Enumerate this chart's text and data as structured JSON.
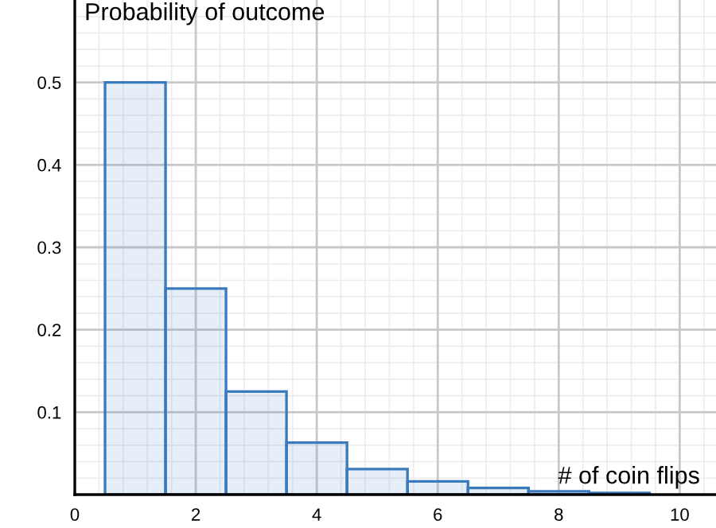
{
  "chart_data": {
    "type": "histogram",
    "xlabel": "# of coin flips",
    "ylabel": "Probability of outcome",
    "bins": [
      0.5,
      1.5,
      2.5,
      3.5,
      4.5,
      5.5,
      6.5,
      7.5,
      8.5,
      9.5
    ],
    "values": [
      0.5,
      0.25,
      0.125,
      0.063,
      0.031,
      0.016,
      0.008,
      0.004,
      0.002
    ],
    "color": "#3a7bbf",
    "xlim": [
      0,
      10.6
    ],
    "ylim": [
      0,
      0.6
    ],
    "xticks": [
      0,
      2,
      4,
      6,
      8,
      10
    ],
    "yticks": [
      0.1,
      0.2,
      0.3,
      0.4,
      0.5
    ],
    "grid": true,
    "legend": false
  }
}
